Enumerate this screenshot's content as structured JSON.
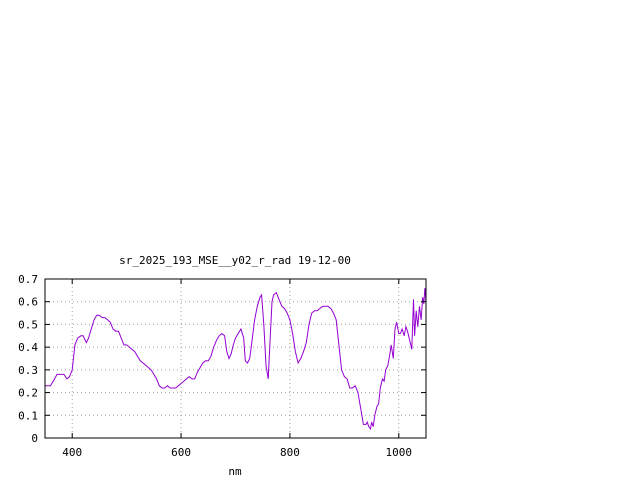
{
  "chart_data": {
    "type": "line",
    "title": "sr_2025_193_MSE__y02_r_rad 19-12-00",
    "xlabel": "nm",
    "ylabel": "",
    "xlim": [
      350,
      1050
    ],
    "ylim": [
      0,
      0.7
    ],
    "xticks": [
      400,
      600,
      800,
      1000
    ],
    "xtick_labels": [
      "400",
      "600",
      "800",
      "1000"
    ],
    "yticks": [
      0,
      0.1,
      0.2,
      0.3,
      0.4,
      0.5,
      0.6,
      0.7
    ],
    "ytick_labels": [
      "0",
      "0.1",
      "0.2",
      "0.3",
      "0.4",
      "0.5",
      "0.6",
      "0.7"
    ],
    "grid": true,
    "legend": "none",
    "series": [
      {
        "color": "#9400d3",
        "x": [
          350,
          360,
          365,
          372,
          380,
          385,
          390,
          395,
          400,
          405,
          410,
          416,
          420,
          426,
          430,
          435,
          440,
          445,
          450,
          455,
          460,
          465,
          470,
          475,
          480,
          485,
          490,
          495,
          500,
          505,
          510,
          515,
          520,
          525,
          530,
          535,
          540,
          545,
          550,
          555,
          560,
          565,
          570,
          575,
          580,
          585,
          590,
          595,
          600,
          605,
          610,
          615,
          620,
          625,
          630,
          635,
          640,
          645,
          650,
          655,
          660,
          665,
          670,
          675,
          680,
          684,
          688,
          692,
          696,
          700,
          705,
          710,
          715,
          718,
          722,
          726,
          730,
          735,
          740,
          745,
          748,
          752,
          756,
          760,
          764,
          767,
          770,
          775,
          780,
          785,
          790,
          795,
          800,
          805,
          810,
          815,
          820,
          825,
          830,
          835,
          840,
          845,
          850,
          855,
          860,
          865,
          870,
          875,
          880,
          885,
          890,
          895,
          900,
          905,
          910,
          915,
          920,
          925,
          930,
          935,
          940,
          942,
          945,
          948,
          950,
          953,
          956,
          960,
          963,
          966,
          970,
          973,
          976,
          980,
          983,
          986,
          990,
          993,
          996,
          1000,
          1003,
          1006,
          1010,
          1013,
          1016,
          1020,
          1024,
          1027,
          1029,
          1032,
          1035,
          1038,
          1041,
          1044,
          1046,
          1048,
          1050
        ],
        "y": [
          0.23,
          0.23,
          0.25,
          0.28,
          0.28,
          0.28,
          0.26,
          0.27,
          0.3,
          0.41,
          0.44,
          0.45,
          0.45,
          0.42,
          0.44,
          0.48,
          0.52,
          0.54,
          0.54,
          0.53,
          0.53,
          0.52,
          0.51,
          0.48,
          0.47,
          0.47,
          0.44,
          0.41,
          0.41,
          0.4,
          0.39,
          0.38,
          0.36,
          0.34,
          0.33,
          0.32,
          0.31,
          0.3,
          0.28,
          0.26,
          0.23,
          0.22,
          0.22,
          0.23,
          0.22,
          0.22,
          0.22,
          0.23,
          0.24,
          0.25,
          0.26,
          0.27,
          0.26,
          0.26,
          0.29,
          0.31,
          0.33,
          0.34,
          0.34,
          0.36,
          0.4,
          0.43,
          0.45,
          0.46,
          0.45,
          0.38,
          0.35,
          0.37,
          0.41,
          0.44,
          0.46,
          0.48,
          0.44,
          0.34,
          0.33,
          0.35,
          0.42,
          0.52,
          0.58,
          0.62,
          0.63,
          0.5,
          0.32,
          0.26,
          0.45,
          0.6,
          0.63,
          0.64,
          0.61,
          0.58,
          0.57,
          0.55,
          0.52,
          0.46,
          0.38,
          0.33,
          0.35,
          0.38,
          0.42,
          0.5,
          0.55,
          0.56,
          0.56,
          0.57,
          0.58,
          0.58,
          0.58,
          0.57,
          0.55,
          0.52,
          0.41,
          0.3,
          0.27,
          0.26,
          0.22,
          0.22,
          0.23,
          0.2,
          0.13,
          0.06,
          0.06,
          0.07,
          0.05,
          0.04,
          0.07,
          0.05,
          0.1,
          0.14,
          0.15,
          0.22,
          0.26,
          0.25,
          0.3,
          0.32,
          0.36,
          0.41,
          0.35,
          0.48,
          0.51,
          0.46,
          0.46,
          0.48,
          0.45,
          0.49,
          0.47,
          0.43,
          0.39,
          0.61,
          0.45,
          0.56,
          0.49,
          0.58,
          0.52,
          0.62,
          0.59,
          0.66,
          0.6
        ]
      }
    ]
  }
}
